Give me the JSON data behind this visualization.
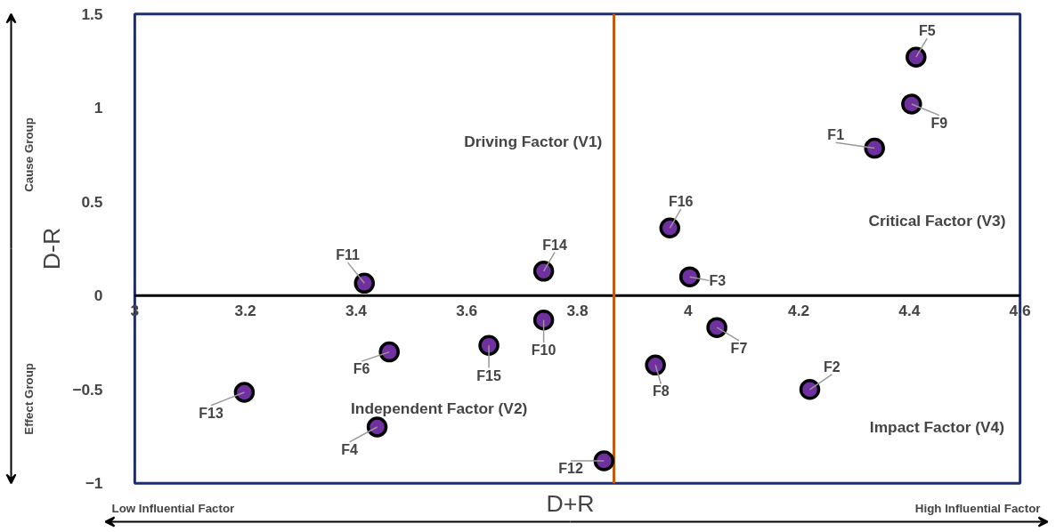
{
  "chart_data": {
    "type": "scatter",
    "xlabel": "D+R",
    "ylabel": "D-R",
    "xlim": [
      3,
      4.6
    ],
    "ylim": [
      -1,
      1.5
    ],
    "xticks": [
      {
        "value": 3,
        "label": "3"
      },
      {
        "value": 3.2,
        "label": "3.2"
      },
      {
        "value": 3.4,
        "label": "3.4"
      },
      {
        "value": 3.6,
        "label": "3.6"
      },
      {
        "value": 3.8,
        "label": "3.8"
      },
      {
        "value": 4,
        "label": "4"
      },
      {
        "value": 4.2,
        "label": "4.2"
      },
      {
        "value": 4.4,
        "label": "4.4"
      },
      {
        "value": 4.6,
        "label": "4.6"
      }
    ],
    "yticks": [
      -1,
      -0.5,
      0,
      0.5,
      1,
      1.5
    ],
    "grid": false,
    "marker": "circle",
    "series": [
      {
        "color": "#7030a0",
        "x": [
          4.337,
          4.22,
          4.003,
          3.438,
          4.412,
          3.46,
          4.052,
          3.941,
          4.404,
          3.739,
          3.415,
          3.848,
          3.198,
          3.739,
          3.64,
          3.967
        ],
        "values": [
          0.785,
          -0.5,
          0.1,
          -0.7,
          1.27,
          -0.3,
          -0.17,
          -0.37,
          1.02,
          -0.13,
          0.066,
          -0.88,
          -0.515,
          0.13,
          -0.265,
          0.36
        ]
      }
    ],
    "ref_lines": [
      {
        "axis": "x",
        "value": 3.866,
        "color": "#c55a11"
      }
    ],
    "annotations": [
      "Driving Factor (V1)",
      "Critical Factor (V3)",
      "Independent Factor (V2)",
      "Impact Factor (V4)",
      "Cause Group",
      "Effect Group",
      "Low Influential Factor",
      "High Influential Factor",
      {
        "text": "F1",
        "x": 4.337,
        "y": 0.785
      },
      {
        "text": "F2",
        "x": 4.22,
        "y": -0.5
      },
      {
        "text": "F3",
        "x": 4.003,
        "y": 0.1
      },
      {
        "text": "F4",
        "x": 3.438,
        "y": -0.7
      },
      {
        "text": "F5",
        "x": 4.412,
        "y": 1.27
      },
      {
        "text": "F6",
        "x": 3.46,
        "y": -0.3
      },
      {
        "text": "F7",
        "x": 4.052,
        "y": -0.17
      },
      {
        "text": "F8",
        "x": 3.941,
        "y": -0.37
      },
      {
        "text": "F9",
        "x": 4.404,
        "y": 1.02
      },
      {
        "text": "F10",
        "x": 3.739,
        "y": -0.13
      },
      {
        "text": "F11",
        "x": 3.415,
        "y": 0.066
      },
      {
        "text": "F12",
        "x": 3.848,
        "y": -0.88
      },
      {
        "text": "F13",
        "x": 3.198,
        "y": -0.515
      },
      {
        "text": "F14",
        "x": 3.739,
        "y": 0.13
      },
      {
        "text": "F15",
        "x": 3.64,
        "y": -0.265
      },
      {
        "text": "F16",
        "x": 3.967,
        "y": 0.36
      }
    ]
  }
}
